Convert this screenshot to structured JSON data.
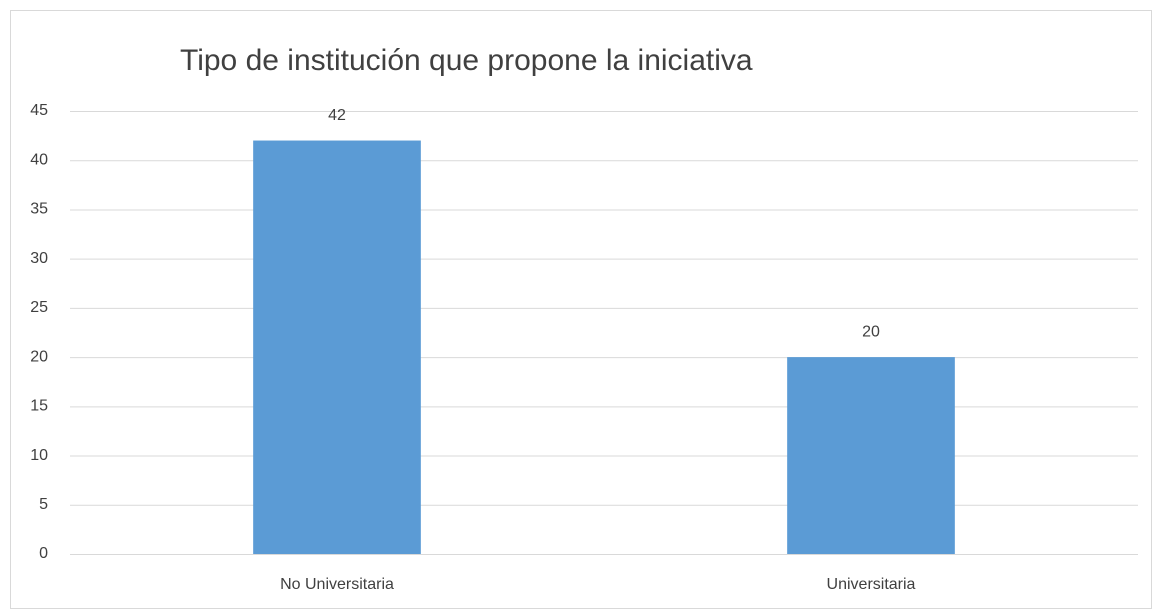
{
  "chart_data": {
    "type": "bar",
    "title": "Tipo de institución que propone la iniciativa",
    "categories": [
      "No Universitaria",
      "Universitaria"
    ],
    "values": [
      42,
      20
    ],
    "color": "#5b9bd5",
    "ylim": [
      0,
      45
    ],
    "yticks": [
      0,
      5,
      10,
      15,
      20,
      25,
      30,
      35,
      40,
      45
    ],
    "grid": true,
    "data_labels": true
  }
}
